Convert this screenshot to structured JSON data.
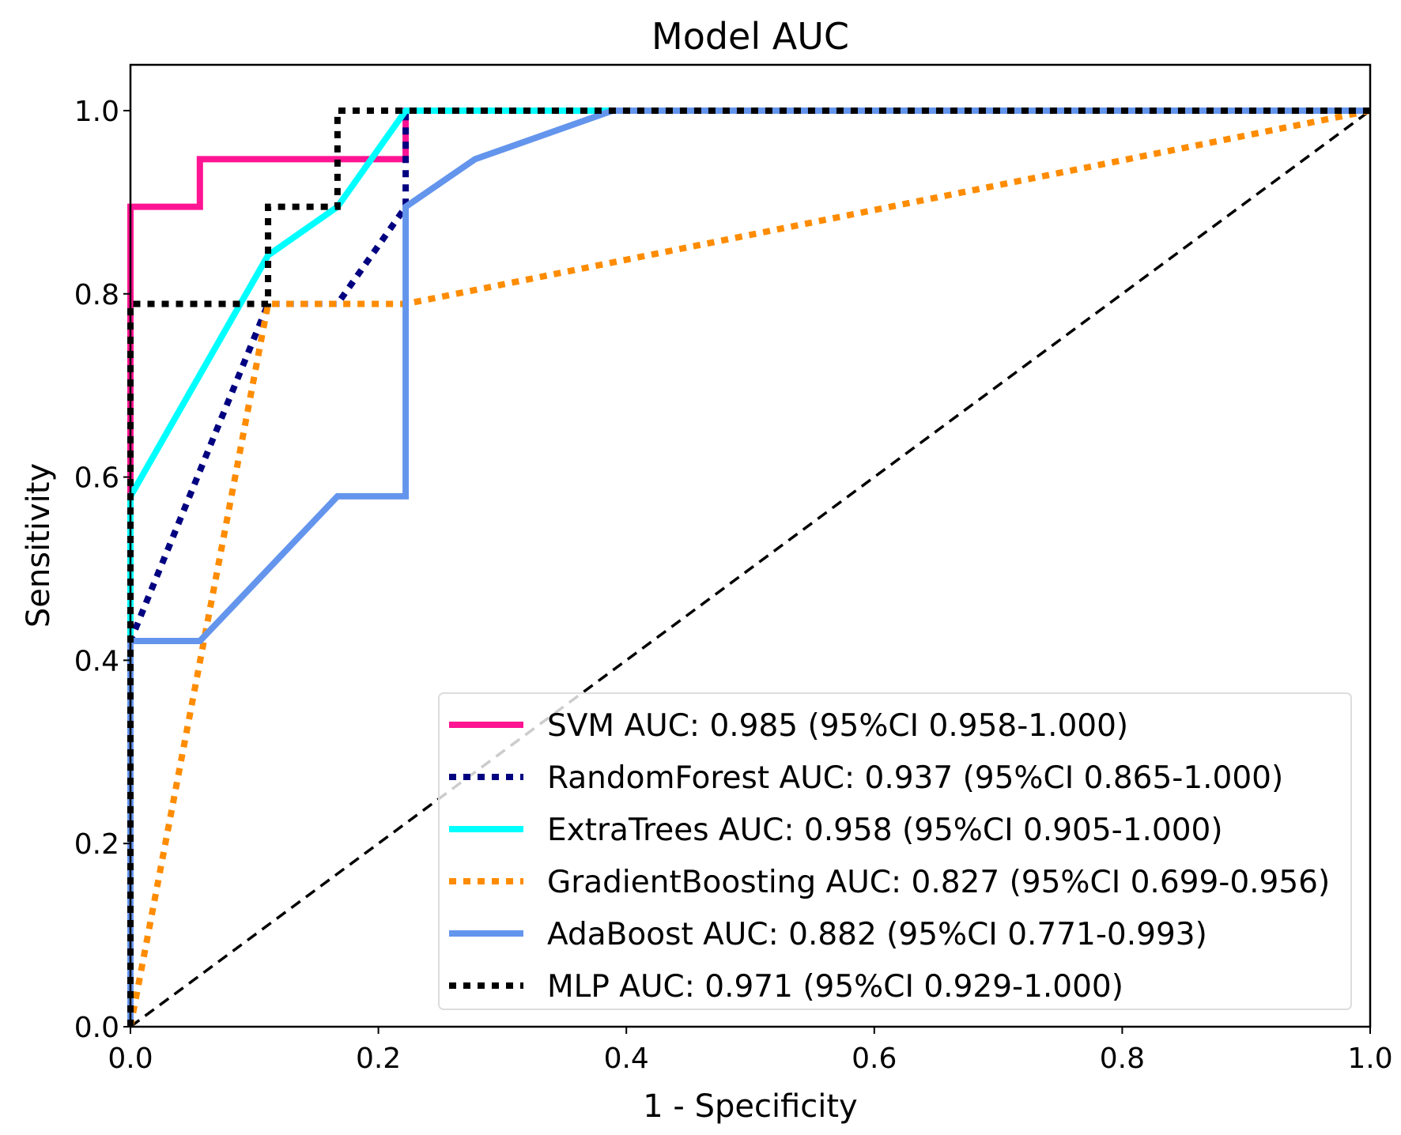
{
  "chart_data": {
    "type": "line",
    "title": "Model AUC",
    "xlabel": "1 - Specificity",
    "ylabel": "Sensitivity",
    "xlim": [
      0,
      1.0
    ],
    "ylim": [
      0,
      1.05
    ],
    "xticks": [
      "0.0",
      "0.2",
      "0.4",
      "0.6",
      "0.8",
      "1.0"
    ],
    "yticks": [
      "0.0",
      "0.2",
      "0.4",
      "0.6",
      "0.8",
      "1.0"
    ],
    "grid": false,
    "legend_position": "lower-right",
    "series": [
      {
        "name": "SVM AUC: 0.985 (95%CI 0.958-1.000)",
        "color": "#ff1493",
        "style": "solid",
        "x": [
          0,
          0,
          0.056,
          0.056,
          0.222,
          0.222,
          1
        ],
        "y": [
          0,
          0.895,
          0.895,
          0.947,
          0.947,
          1,
          1
        ]
      },
      {
        "name": "RandomForest AUC: 0.937 (95%CI 0.865-1.000)",
        "color": "#000080",
        "style": "dotted",
        "x": [
          0,
          0,
          0.111,
          0.167,
          0.222,
          0.222,
          1
        ],
        "y": [
          0,
          0.421,
          0.789,
          0.789,
          0.895,
          1,
          1
        ]
      },
      {
        "name": "ExtraTrees AUC: 0.958 (95%CI 0.905-1.000)",
        "color": "#00ffff",
        "style": "solid",
        "x": [
          0,
          0,
          0.111,
          0.167,
          0.222,
          1
        ],
        "y": [
          0,
          0.579,
          0.842,
          0.895,
          1,
          1
        ]
      },
      {
        "name": "GradientBoosting AUC: 0.827 (95%CI 0.699-0.956)",
        "color": "#ff8c00",
        "style": "dotted",
        "x": [
          0,
          0.111,
          0.222,
          1
        ],
        "y": [
          0,
          0.789,
          0.789,
          1
        ]
      },
      {
        "name": "AdaBoost AUC: 0.882 (95%CI 0.771-0.993)",
        "color": "#6495ed",
        "style": "solid",
        "x": [
          0,
          0,
          0.056,
          0.167,
          0.222,
          0.222,
          0.278,
          0.389,
          1
        ],
        "y": [
          0,
          0.421,
          0.421,
          0.579,
          0.579,
          0.895,
          0.947,
          1,
          1
        ]
      },
      {
        "name": "MLP AUC: 0.971 (95%CI 0.929-1.000)",
        "color": "#000000",
        "style": "dotted",
        "x": [
          0,
          0,
          0.111,
          0.111,
          0.167,
          0.167,
          1
        ],
        "y": [
          0,
          0.789,
          0.789,
          0.895,
          0.895,
          1,
          1
        ]
      }
    ],
    "reference_line": {
      "x": [
        0,
        1
      ],
      "y": [
        0,
        1
      ],
      "color": "#000000",
      "style": "dashed"
    }
  }
}
